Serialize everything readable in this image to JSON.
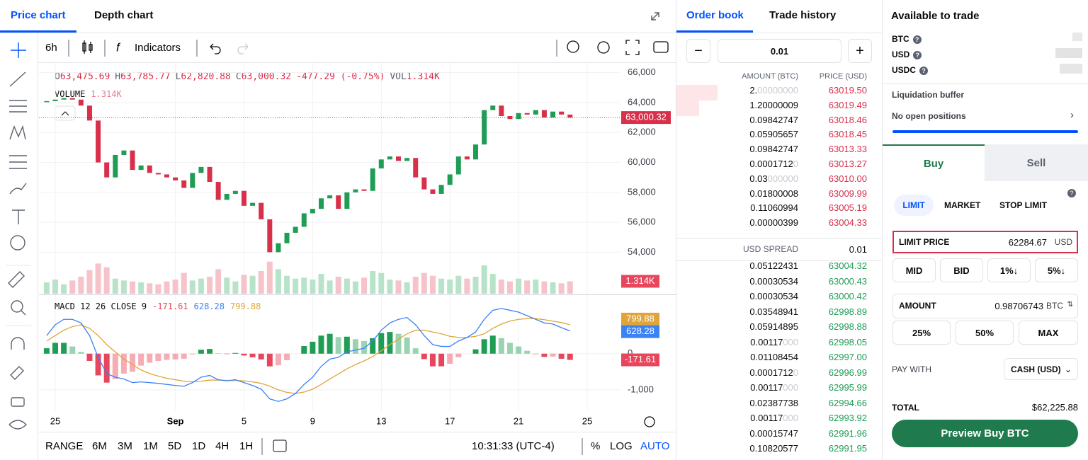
{
  "price_panel": {
    "tabs": [
      "Price chart",
      "Depth chart"
    ],
    "toolbar": {
      "interval": "6h",
      "indicators": "Indicators"
    },
    "range_bar": {
      "label": "RANGE",
      "ranges": [
        "6M",
        "3M",
        "1M",
        "5D",
        "1D",
        "4H",
        "1H"
      ],
      "clock": "10:31:33 (UTC-4)",
      "scale_options": [
        "%",
        "LOG",
        "AUTO"
      ]
    }
  },
  "chart_data": [
    {
      "type": "candlestick",
      "header": [
        "O",
        "63,475.69",
        "H",
        "63,785.77",
        "L",
        "62,820.88",
        "C",
        "63,000.32",
        "-477.29 (-0.75%)",
        "VOL",
        "1.314K"
      ],
      "volume_title": "VOLUME",
      "x": [
        -0.5,
        0,
        0.5,
        1,
        1.5,
        2,
        2.5,
        3,
        3.5,
        4,
        4.5,
        5,
        5.5,
        6,
        6.5,
        7,
        7.5,
        8,
        8.5,
        9,
        9.5,
        10,
        10.5,
        11,
        11.5,
        12,
        12.5,
        13,
        13.5,
        14,
        14.5,
        15,
        15.5,
        16,
        16.5,
        17,
        17.5,
        18,
        18.5,
        19,
        19.5,
        20,
        20.5,
        21,
        21.5,
        22,
        22.5,
        23,
        23.5,
        24,
        24.5,
        25,
        25.5,
        26,
        26.5,
        27,
        27.5,
        28,
        28.5,
        29,
        29.5,
        30
      ],
      "xlim": [
        -0.95,
        32.9
      ],
      "xticks": [
        {
          "value": 0,
          "label": "25"
        },
        {
          "value": 7,
          "label": "Sep"
        },
        {
          "value": 11,
          "label": "5"
        },
        {
          "value": 15,
          "label": "9"
        },
        {
          "value": 19,
          "label": "13"
        },
        {
          "value": 23,
          "label": "17"
        },
        {
          "value": 27,
          "label": "21"
        },
        {
          "value": 31,
          "label": "25"
        }
      ],
      "close": [
        64100,
        64200,
        64300,
        64200,
        63800,
        62800,
        60000,
        59000,
        60500,
        60800,
        59500,
        59800,
        59300,
        59200,
        59000,
        58800,
        58300,
        59300,
        59700,
        58700,
        57500,
        57900,
        58100,
        57100,
        57300,
        56200,
        54000,
        54600,
        55300,
        55700,
        56600,
        56900,
        57600,
        57800,
        56900,
        58000,
        58200,
        58100,
        59600,
        60200,
        60400,
        60100,
        60300,
        59000,
        58200,
        57900,
        58500,
        59200,
        60400,
        60200,
        61200,
        63500,
        63800,
        63100,
        62900,
        63300,
        63200,
        63500,
        63000,
        63400,
        63200,
        63000
      ],
      "ylim": [
        52600,
        66600
      ],
      "yticks": [
        {
          "value": 54000,
          "label": "54,000"
        },
        {
          "value": 56000,
          "label": "56,000"
        },
        {
          "value": 58000,
          "label": "58,000"
        },
        {
          "value": 60000,
          "label": "60,000"
        },
        {
          "value": 62000,
          "label": "62,000"
        },
        {
          "value": 64000,
          "label": "64,000"
        },
        {
          "value": 66000,
          "label": "66,000"
        }
      ],
      "volume": [
        1.2,
        1.5,
        1.0,
        1.4,
        1.8,
        2.5,
        3.2,
        2.8,
        1.6,
        1.4,
        1.3,
        1.2,
        1.1,
        1.0,
        1.3,
        1.5,
        2.2,
        1.4,
        1.6,
        1.8,
        2.6,
        1.7,
        1.3,
        2.0,
        1.9,
        2.4,
        3.4,
        2.6,
        1.9,
        1.6,
        1.7,
        1.5,
        2.1,
        1.4,
        1.8,
        1.6,
        1.3,
        1.7,
        2.4,
        2.2,
        1.5,
        1.4,
        1.2,
        1.8,
        2.2,
        1.9,
        1.6,
        1.5,
        1.9,
        1.6,
        1.8,
        3.0,
        2.1,
        1.5,
        1.3,
        1.6,
        1.4,
        1.5,
        1.3,
        1.2,
        1.1,
        1.314
      ],
      "volume_ylim": [
        0,
        4.5
      ],
      "last_price": {
        "value": 63000.32,
        "label": "63,000.32"
      },
      "last_volume": {
        "value": 1.314,
        "label": "1.314K"
      },
      "up_color": "#1f9d55",
      "down_color": "#d9304a",
      "volume_up_color": "#b8e3c9",
      "volume_down_color": "#f6c3cb",
      "grid": true
    },
    {
      "type": "macd",
      "title": "MACD 12 26 CLOSE 9",
      "macd": {
        "color": "#3b82f6",
        "values": [
          500,
          800,
          950,
          950,
          850,
          500,
          -100,
          -550,
          -650,
          -700,
          -800,
          -780,
          -800,
          -820,
          -850,
          -880,
          -900,
          -800,
          -650,
          -600,
          -720,
          -750,
          -720,
          -800,
          -880,
          -980,
          -1250,
          -1320,
          -1250,
          -1100,
          -850,
          -650,
          -350,
          -150,
          -100,
          50,
          100,
          150,
          350,
          650,
          850,
          950,
          1000,
          800,
          500,
          250,
          200,
          200,
          350,
          450,
          600,
          950,
          1200,
          1250,
          1200,
          1150,
          1050,
          950,
          850,
          820,
          720,
          628.28
        ]
      },
      "signal": {
        "color": "#e0a53a",
        "values": [
          350,
          500,
          650,
          750,
          800,
          700,
          500,
          250,
          50,
          -150,
          -300,
          -450,
          -550,
          -620,
          -680,
          -720,
          -760,
          -780,
          -760,
          -730,
          -730,
          -740,
          -740,
          -750,
          -780,
          -820,
          -900,
          -1000,
          -1070,
          -1100,
          -1060,
          -980,
          -850,
          -700,
          -560,
          -420,
          -300,
          -200,
          -80,
          80,
          250,
          400,
          550,
          650,
          650,
          600,
          550,
          480,
          450,
          450,
          480,
          550,
          700,
          820,
          900,
          950,
          970,
          970,
          940,
          900,
          860,
          799.88
        ]
      },
      "histogram": {
        "up_color": "#1f9d55",
        "down_color": "#e8465c",
        "values": [
          150,
          300,
          300,
          200,
          50,
          -200,
          -600,
          -800,
          -700,
          -550,
          -500,
          -330,
          -250,
          -200,
          -170,
          -160,
          -140,
          -20,
          110,
          130,
          10,
          -10,
          20,
          -50,
          -100,
          -160,
          -350,
          -320,
          -180,
          0,
          210,
          330,
          500,
          550,
          460,
          470,
          400,
          350,
          430,
          570,
          600,
          550,
          450,
          150,
          -150,
          -350,
          -350,
          -280,
          -100,
          0,
          120,
          400,
          500,
          430,
          300,
          200,
          80,
          -20,
          -90,
          -80,
          -140,
          -171.61
        ]
      },
      "ylim": [
        -1570,
        1600
      ],
      "yticks": [
        0,
        {
          "value": -1000,
          "label": "-1,000"
        }
      ]
    }
  ],
  "order_book": {
    "tabs": [
      "Order book",
      "Trade history"
    ],
    "step": "0.01",
    "columns": [
      "AMOUNT (BTC)",
      "PRICE (USD)"
    ],
    "asks": [
      {
        "amount": "2.",
        "amount_tail": "00000000",
        "price": "63019.50"
      },
      {
        "amount": "1.20000009",
        "price": "63019.49"
      },
      {
        "amount": "0.09842747",
        "price": "63018.46"
      },
      {
        "amount": "0.05905657",
        "price": "63018.45"
      },
      {
        "amount": "0.09842747",
        "price": "63013.33"
      },
      {
        "amount": "0.0001712",
        "amount_tail": "0",
        "price": "63013.27"
      },
      {
        "amount": "0.03",
        "amount_tail": "000000",
        "price": "63010.00"
      },
      {
        "amount": "0.01800008",
        "price": "63009.99"
      },
      {
        "amount": "0.11060994",
        "price": "63005.19"
      },
      {
        "amount": "0.00000399",
        "price": "63004.33"
      }
    ],
    "spread": {
      "label": "USD SPREAD",
      "value": "0.01"
    },
    "bids": [
      {
        "amount": "0.05122431",
        "price": "63004.32"
      },
      {
        "amount": "0.00030534",
        "price": "63000.43"
      },
      {
        "amount": "0.00030534",
        "price": "63000.42"
      },
      {
        "amount": "0.03548941",
        "price": "62998.89"
      },
      {
        "amount": "0.05914895",
        "price": "62998.88"
      },
      {
        "amount": "0.00117",
        "amount_tail": "000",
        "price": "62998.05"
      },
      {
        "amount": "0.01108454",
        "price": "62997.00"
      },
      {
        "amount": "0.0001712",
        "amount_tail": "0",
        "price": "62996.99"
      },
      {
        "amount": "0.00117",
        "amount_tail": "000",
        "price": "62995.99"
      },
      {
        "amount": "0.02387738",
        "price": "62994.66"
      },
      {
        "amount": "0.00117",
        "amount_tail": "000",
        "price": "62993.92"
      },
      {
        "amount": "0.00015747",
        "price": "62991.96"
      },
      {
        "amount": "0.10820577",
        "price": "62991.95"
      }
    ]
  },
  "trade_panel": {
    "title": "Available to trade",
    "assets": [
      "BTC",
      "USD",
      "USDC"
    ],
    "liquidation": "Liquidation buffer",
    "positions": "No open positions",
    "sides": [
      "Buy",
      "Sell"
    ],
    "order_types": [
      "LIMIT",
      "MARKET",
      "STOP LIMIT"
    ],
    "limit_price": {
      "label": "LIMIT PRICE",
      "value": "62284.67",
      "unit": "USD"
    },
    "price_presets": [
      "MID",
      "BID",
      "1%↓",
      "5%↓"
    ],
    "amount": {
      "label": "AMOUNT",
      "value": "0.98706743",
      "unit": "BTC"
    },
    "amount_presets": [
      "25%",
      "50%",
      "MAX"
    ],
    "pay_with": {
      "label": "PAY WITH",
      "value": "CASH (USD)"
    },
    "total": {
      "label": "TOTAL",
      "value": "$62,225.88"
    },
    "submit": "Preview Buy BTC"
  }
}
